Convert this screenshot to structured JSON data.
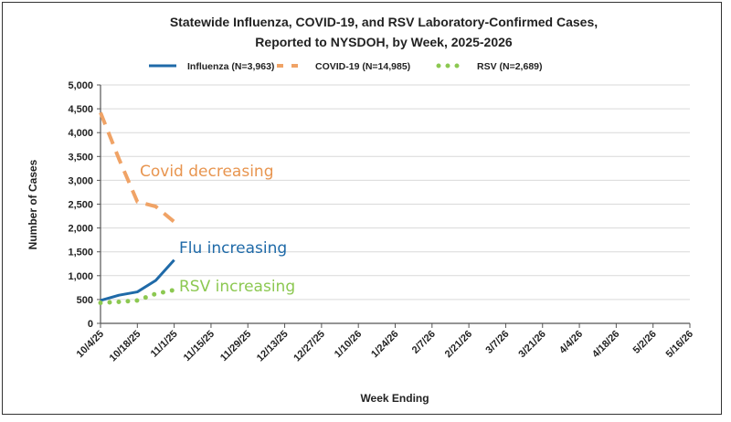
{
  "chart_data": {
    "type": "line",
    "title": "Statewide Influenza, COVID-19, and RSV Laboratory-Confirmed  Cases,",
    "subtitle": "Reported to NYSDOH, by Week, 2025-2026",
    "xlabel": "Week Ending",
    "ylabel": "Number of Cases",
    "ylim": [
      0,
      5000
    ],
    "yticks": [
      "0",
      "500",
      "1,000",
      "1,500",
      "2,000",
      "2,500",
      "3,000",
      "3,500",
      "4,000",
      "4,500",
      "5,000"
    ],
    "xtick_labels": [
      "10/4/25",
      "10/18/25",
      "11/1/25",
      "11/15/25",
      "11/29/25",
      "12/13/25",
      "12/27/25",
      "1/10/26",
      "1/24/26",
      "2/7/26",
      "2/21/26",
      "3/7/26",
      "3/21/26",
      "4/4/26",
      "4/18/26",
      "5/2/26",
      "5/16/26"
    ],
    "x": [
      "10/4/25",
      "10/11/25",
      "10/18/25",
      "10/25/25",
      "11/1/25"
    ],
    "grid": "horizontal",
    "legend_position": "top",
    "series": [
      {
        "name": "Influenza (N=3,963)",
        "values": [
          480,
          590,
          660,
          900,
          1330
        ],
        "color": "#1f6aa8",
        "style": "solid"
      },
      {
        "name": "COVID-19 (N=14,985)",
        "values": [
          4420,
          3450,
          2550,
          2450,
          2130
        ],
        "color": "#f0a366",
        "style": "dashed"
      },
      {
        "name": "RSV (N=2,689)",
        "values": [
          430,
          450,
          480,
          620,
          700
        ],
        "color": "#8cc851",
        "style": "dotted"
      }
    ],
    "annotations": [
      {
        "text": "Covid decreasing",
        "color": "#e8954f"
      },
      {
        "text": "Flu increasing",
        "color": "#1f6aa8"
      },
      {
        "text": "RSV increasing",
        "color": "#8cc851"
      }
    ]
  }
}
